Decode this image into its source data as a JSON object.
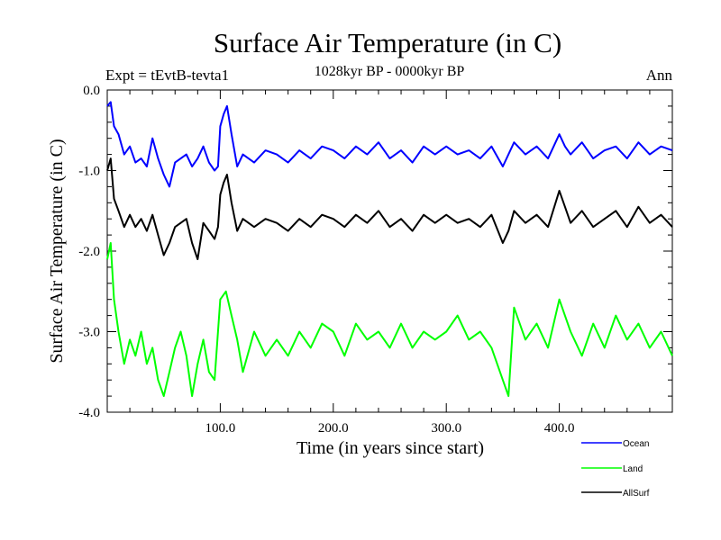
{
  "chart_data": {
    "type": "line",
    "title": "Surface Air Temperature (in C)",
    "subtitle": "1028kyr BP - 0000kyr BP",
    "experiment": "Expt = tEvtB-tevta1",
    "season": "Ann",
    "xlabel": "Time (in years since start)",
    "ylabel": "Surface Air Temperature (in C)",
    "xlim": [
      0,
      500
    ],
    "ylim": [
      -4.0,
      0.0
    ],
    "x_tick_labels": [
      "100.0",
      "200.0",
      "300.0",
      "400.0"
    ],
    "x_tick_values": [
      100,
      200,
      300,
      400
    ],
    "y_tick_labels": [
      "0.0",
      "-1.0",
      "-2.0",
      "-3.0",
      "-4.0"
    ],
    "y_tick_values": [
      0,
      -1,
      -2,
      -3,
      -4
    ],
    "legend_position": "bottom-right",
    "series": [
      {
        "name": "Ocean",
        "color": "#0000ff",
        "points": [
          [
            0,
            -0.2
          ],
          [
            3,
            -0.15
          ],
          [
            6,
            -0.45
          ],
          [
            10,
            -0.55
          ],
          [
            15,
            -0.8
          ],
          [
            20,
            -0.7
          ],
          [
            25,
            -0.9
          ],
          [
            30,
            -0.85
          ],
          [
            35,
            -0.95
          ],
          [
            40,
            -0.6
          ],
          [
            45,
            -0.85
          ],
          [
            50,
            -1.05
          ],
          [
            55,
            -1.2
          ],
          [
            60,
            -0.9
          ],
          [
            70,
            -0.8
          ],
          [
            75,
            -0.95
          ],
          [
            80,
            -0.85
          ],
          [
            85,
            -0.7
          ],
          [
            90,
            -0.9
          ],
          [
            95,
            -1.0
          ],
          [
            98,
            -0.95
          ],
          [
            100,
            -0.45
          ],
          [
            103,
            -0.3
          ],
          [
            106,
            -0.2
          ],
          [
            110,
            -0.55
          ],
          [
            115,
            -0.95
          ],
          [
            120,
            -0.8
          ],
          [
            130,
            -0.9
          ],
          [
            140,
            -0.75
          ],
          [
            150,
            -0.8
          ],
          [
            160,
            -0.9
          ],
          [
            170,
            -0.75
          ],
          [
            180,
            -0.85
          ],
          [
            190,
            -0.7
          ],
          [
            200,
            -0.75
          ],
          [
            210,
            -0.85
          ],
          [
            220,
            -0.7
          ],
          [
            230,
            -0.8
          ],
          [
            240,
            -0.65
          ],
          [
            250,
            -0.85
          ],
          [
            260,
            -0.75
          ],
          [
            270,
            -0.9
          ],
          [
            280,
            -0.7
          ],
          [
            290,
            -0.8
          ],
          [
            300,
            -0.7
          ],
          [
            310,
            -0.8
          ],
          [
            320,
            -0.75
          ],
          [
            330,
            -0.85
          ],
          [
            340,
            -0.7
          ],
          [
            350,
            -0.95
          ],
          [
            360,
            -0.65
          ],
          [
            370,
            -0.8
          ],
          [
            380,
            -0.7
          ],
          [
            390,
            -0.85
          ],
          [
            400,
            -0.55
          ],
          [
            405,
            -0.7
          ],
          [
            410,
            -0.8
          ],
          [
            420,
            -0.65
          ],
          [
            430,
            -0.85
          ],
          [
            440,
            -0.75
          ],
          [
            450,
            -0.7
          ],
          [
            460,
            -0.85
          ],
          [
            470,
            -0.65
          ],
          [
            480,
            -0.8
          ],
          [
            490,
            -0.7
          ],
          [
            500,
            -0.75
          ]
        ]
      },
      {
        "name": "Land",
        "color": "#00ff00",
        "points": [
          [
            0,
            -2.1
          ],
          [
            3,
            -1.9
          ],
          [
            6,
            -2.6
          ],
          [
            10,
            -3.0
          ],
          [
            15,
            -3.4
          ],
          [
            20,
            -3.1
          ],
          [
            25,
            -3.3
          ],
          [
            30,
            -3.0
          ],
          [
            35,
            -3.4
          ],
          [
            40,
            -3.2
          ],
          [
            45,
            -3.6
          ],
          [
            50,
            -3.8
          ],
          [
            55,
            -3.5
          ],
          [
            60,
            -3.2
          ],
          [
            65,
            -3.0
          ],
          [
            70,
            -3.3
          ],
          [
            75,
            -3.8
          ],
          [
            80,
            -3.4
          ],
          [
            85,
            -3.1
          ],
          [
            90,
            -3.5
          ],
          [
            95,
            -3.6
          ],
          [
            100,
            -2.6
          ],
          [
            105,
            -2.5
          ],
          [
            110,
            -2.8
          ],
          [
            115,
            -3.1
          ],
          [
            120,
            -3.5
          ],
          [
            130,
            -3.0
          ],
          [
            140,
            -3.3
          ],
          [
            150,
            -3.1
          ],
          [
            160,
            -3.3
          ],
          [
            170,
            -3.0
          ],
          [
            180,
            -3.2
          ],
          [
            190,
            -2.9
          ],
          [
            200,
            -3.0
          ],
          [
            210,
            -3.3
          ],
          [
            220,
            -2.9
          ],
          [
            230,
            -3.1
          ],
          [
            240,
            -3.0
          ],
          [
            250,
            -3.2
          ],
          [
            260,
            -2.9
          ],
          [
            270,
            -3.2
          ],
          [
            280,
            -3.0
          ],
          [
            290,
            -3.1
          ],
          [
            300,
            -3.0
          ],
          [
            310,
            -2.8
          ],
          [
            320,
            -3.1
          ],
          [
            330,
            -3.0
          ],
          [
            340,
            -3.2
          ],
          [
            350,
            -3.6
          ],
          [
            355,
            -3.8
          ],
          [
            360,
            -2.7
          ],
          [
            370,
            -3.1
          ],
          [
            380,
            -2.9
          ],
          [
            390,
            -3.2
          ],
          [
            400,
            -2.6
          ],
          [
            410,
            -3.0
          ],
          [
            420,
            -3.3
          ],
          [
            430,
            -2.9
          ],
          [
            440,
            -3.2
          ],
          [
            450,
            -2.8
          ],
          [
            460,
            -3.1
          ],
          [
            470,
            -2.9
          ],
          [
            480,
            -3.2
          ],
          [
            490,
            -3.0
          ],
          [
            500,
            -3.3
          ]
        ]
      },
      {
        "name": "AllSurf",
        "color": "#000000",
        "points": [
          [
            0,
            -1.0
          ],
          [
            3,
            -0.85
          ],
          [
            6,
            -1.35
          ],
          [
            10,
            -1.5
          ],
          [
            15,
            -1.7
          ],
          [
            20,
            -1.55
          ],
          [
            25,
            -1.7
          ],
          [
            30,
            -1.6
          ],
          [
            35,
            -1.75
          ],
          [
            40,
            -1.55
          ],
          [
            45,
            -1.8
          ],
          [
            50,
            -2.05
          ],
          [
            55,
            -1.9
          ],
          [
            60,
            -1.7
          ],
          [
            70,
            -1.6
          ],
          [
            75,
            -1.9
          ],
          [
            80,
            -2.1
          ],
          [
            85,
            -1.65
          ],
          [
            90,
            -1.75
          ],
          [
            95,
            -1.85
          ],
          [
            98,
            -1.7
          ],
          [
            100,
            -1.3
          ],
          [
            103,
            -1.15
          ],
          [
            106,
            -1.05
          ],
          [
            110,
            -1.4
          ],
          [
            115,
            -1.75
          ],
          [
            120,
            -1.6
          ],
          [
            130,
            -1.7
          ],
          [
            140,
            -1.6
          ],
          [
            150,
            -1.65
          ],
          [
            160,
            -1.75
          ],
          [
            170,
            -1.6
          ],
          [
            180,
            -1.7
          ],
          [
            190,
            -1.55
          ],
          [
            200,
            -1.6
          ],
          [
            210,
            -1.7
          ],
          [
            220,
            -1.55
          ],
          [
            230,
            -1.65
          ],
          [
            240,
            -1.5
          ],
          [
            250,
            -1.7
          ],
          [
            260,
            -1.6
          ],
          [
            270,
            -1.75
          ],
          [
            280,
            -1.55
          ],
          [
            290,
            -1.65
          ],
          [
            300,
            -1.55
          ],
          [
            310,
            -1.65
          ],
          [
            320,
            -1.6
          ],
          [
            330,
            -1.7
          ],
          [
            340,
            -1.55
          ],
          [
            350,
            -1.9
          ],
          [
            355,
            -1.75
          ],
          [
            360,
            -1.5
          ],
          [
            370,
            -1.65
          ],
          [
            380,
            -1.55
          ],
          [
            390,
            -1.7
          ],
          [
            400,
            -1.25
          ],
          [
            405,
            -1.45
          ],
          [
            410,
            -1.65
          ],
          [
            420,
            -1.5
          ],
          [
            430,
            -1.7
          ],
          [
            440,
            -1.6
          ],
          [
            450,
            -1.5
          ],
          [
            460,
            -1.7
          ],
          [
            470,
            -1.45
          ],
          [
            480,
            -1.65
          ],
          [
            490,
            -1.55
          ],
          [
            500,
            -1.7
          ]
        ]
      }
    ]
  }
}
